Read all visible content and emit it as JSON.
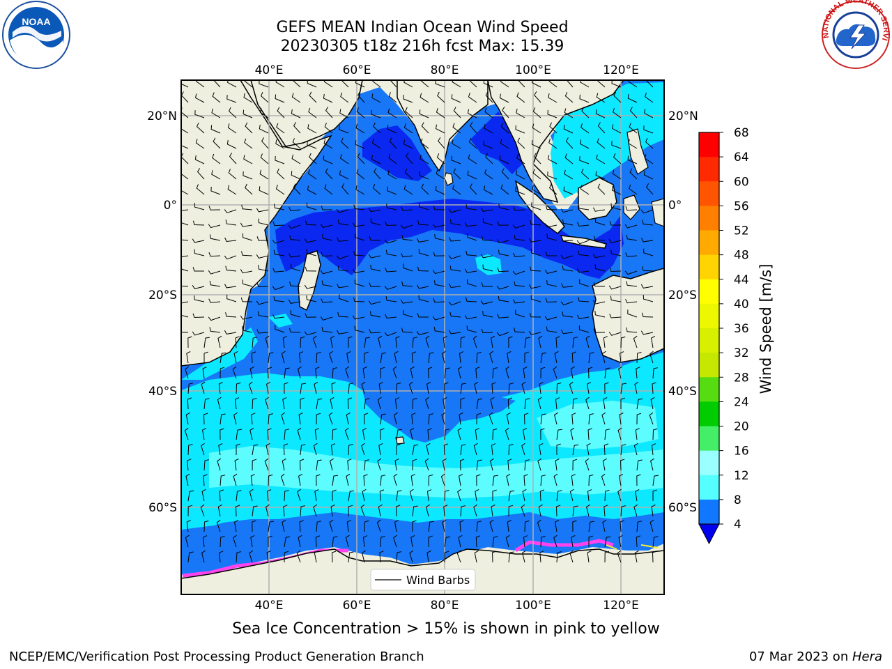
{
  "header": {
    "title_line1": "GEFS MEAN Indian Ocean Wind Speed",
    "title_line2": "20230305 t18z 216h fcst   Max: 15.39"
  },
  "logos": {
    "left": "NOAA",
    "right": "NATIONAL WEATHER SERVICE"
  },
  "map": {
    "region": "Indian Ocean",
    "projection": "Mercator",
    "lon_range": [
      20,
      130
    ],
    "lat_range": [
      -75,
      28
    ],
    "lon_ticks": [
      "40°E",
      "60°E",
      "80°E",
      "100°E",
      "120°E"
    ],
    "lat_ticks_left": [
      "20°N",
      "0°",
      "20°S",
      "40°S",
      "60°S"
    ],
    "lat_ticks_right": [
      "20°N",
      "0°",
      "20°S",
      "40°S",
      "60°S"
    ],
    "grid": true,
    "legend": {
      "label": "Wind Barbs",
      "placement": "bottom-center"
    }
  },
  "colorbar": {
    "label": "Wind Speed [m/s]",
    "ticks": [
      "68",
      "64",
      "60",
      "56",
      "52",
      "48",
      "44",
      "40",
      "36",
      "32",
      "28",
      "24",
      "20",
      "16",
      "12",
      "8",
      "4"
    ],
    "colors": [
      "#ff0000",
      "#ff2a00",
      "#ff5500",
      "#ff7f00",
      "#ffaa00",
      "#ffd400",
      "#ffff00",
      "#ecf700",
      "#d9ef00",
      "#c6e700",
      "#55dd11",
      "#00cc00",
      "#44ee66",
      "#99ffff",
      "#55ffff",
      "#00ffff",
      "#00eeff"
    ],
    "extend_color": "#0000ee",
    "first_band_color": "#1177ff"
  },
  "caption": "Sea Ice Concentration > 15% is shown in pink to yellow",
  "footer": {
    "left": "NCEP/EMC/Verification Post Processing Product Generation Branch",
    "right_prefix": "07 Mar 2023 on ",
    "right_host": "Hera"
  }
}
